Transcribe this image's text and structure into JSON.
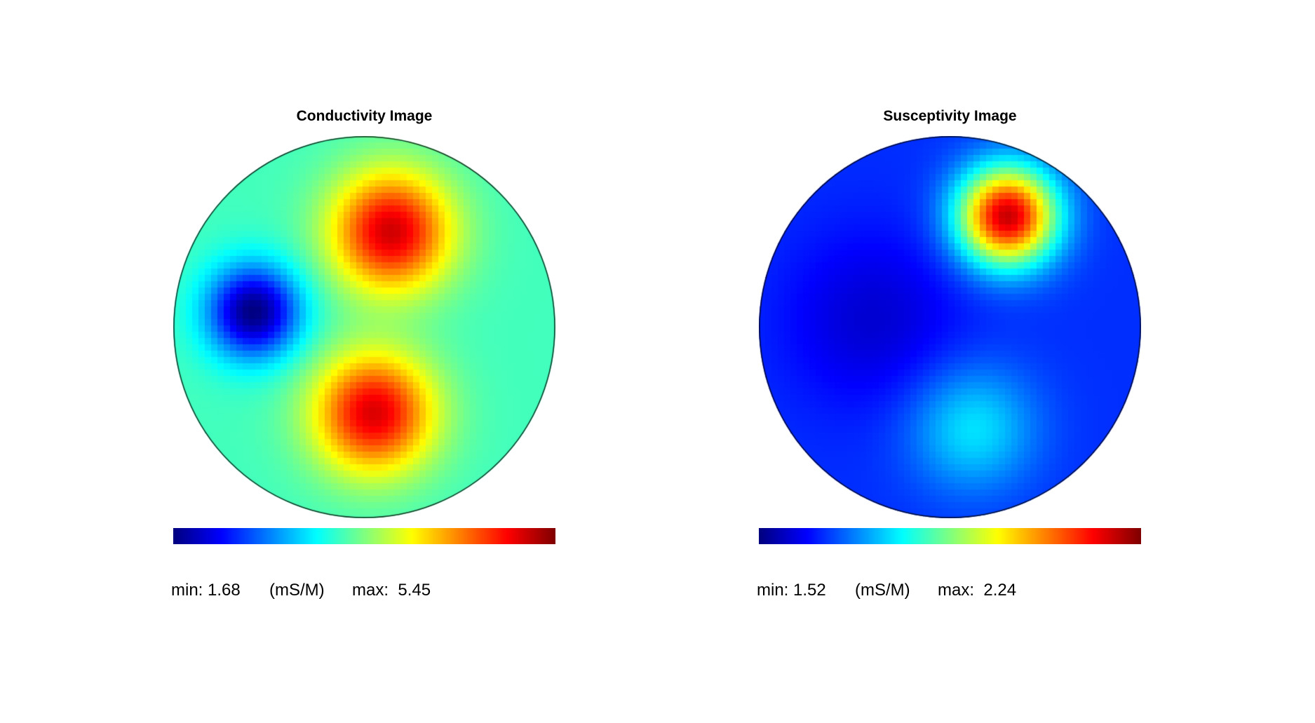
{
  "chart_data": [
    {
      "type": "heatmap",
      "title": "Conductivity Image",
      "colormap": "jet",
      "min": 1.68,
      "max": 5.45,
      "unit": "(mS/M)",
      "min_label": "min: 1.68",
      "max_label": "max:  5.45",
      "field": {
        "domain": "unit disk",
        "background": 0.44,
        "blobs": [
          {
            "cx": 0.14,
            "cy": 0.5,
            "sigma": 0.22,
            "amp": 0.48
          },
          {
            "cx": 0.05,
            "cy": -0.45,
            "sigma": 0.22,
            "amp": 0.47
          },
          {
            "cx": -0.58,
            "cy": 0.08,
            "sigma": 0.17,
            "amp": -0.44
          }
        ]
      }
    },
    {
      "type": "heatmap",
      "title": "Susceptivity Image",
      "colormap": "jet",
      "min": 1.52,
      "max": 2.24,
      "unit": "(mS/M)",
      "min_label": "min: 1.52",
      "max_label": "max:  2.24",
      "field": {
        "domain": "unit disk",
        "background": 0.17,
        "blobs": [
          {
            "cx": 0.3,
            "cy": 0.58,
            "sigma": 0.18,
            "amp": 0.76
          },
          {
            "cx": 0.12,
            "cy": -0.53,
            "sigma": 0.23,
            "amp": 0.18
          },
          {
            "cx": -0.4,
            "cy": 0.04,
            "sigma": 0.32,
            "amp": -0.09
          }
        ]
      }
    }
  ]
}
